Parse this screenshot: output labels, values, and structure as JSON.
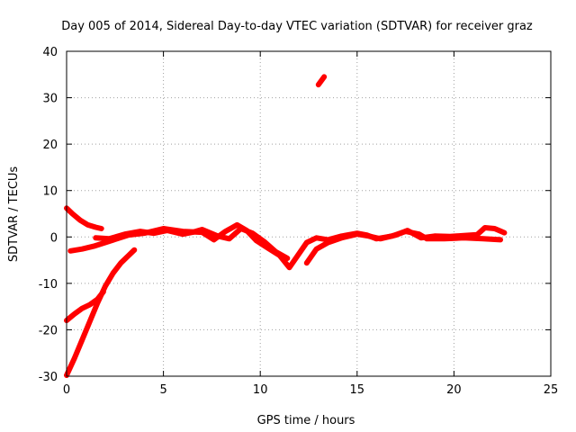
{
  "chart_data": {
    "type": "line",
    "title": "Day 005 of 2014, Sidereal Day-to-day VTEC variation (SDTVAR) for receiver graz",
    "xlabel": "GPS time / hours",
    "ylabel": "SDTVAR / TECUs",
    "xlim": [
      0,
      25
    ],
    "ylim": [
      -30,
      40
    ],
    "xticks": [
      0,
      5,
      10,
      15,
      20,
      25
    ],
    "yticks": [
      -30,
      -20,
      -10,
      0,
      10,
      20,
      30,
      40
    ],
    "xtick_labels": [
      "0",
      "5",
      "10",
      "15",
      "20",
      "25"
    ],
    "ytick_labels": [
      "-30",
      "-20",
      "-10",
      "0",
      "10",
      "20",
      "30",
      "40"
    ],
    "grid": true,
    "legend": "none",
    "color": "#ff0000",
    "series": [
      {
        "name": "pass-1",
        "x": [
          0.0,
          0.3,
          0.7,
          1.1,
          1.5,
          1.8
        ],
        "y": [
          6.2,
          5.0,
          3.6,
          2.6,
          2.1,
          1.8
        ]
      },
      {
        "name": "pass-2",
        "x": [
          0.2,
          0.8,
          1.4,
          2.0,
          2.6,
          3.2,
          4.0,
          5.0,
          6.0,
          7.0,
          7.6,
          8.2,
          8.8,
          9.3,
          9.8,
          10.4,
          11.0,
          11.5,
          11.9,
          12.4,
          12.9,
          13.5,
          14.2,
          15.0,
          15.5,
          16.0,
          16.8,
          17.5,
          18.2,
          18.6,
          19.5,
          20.5,
          21.5,
          22.4
        ],
        "y": [
          -3.0,
          -2.6,
          -2.0,
          -1.2,
          -0.4,
          0.4,
          0.8,
          1.8,
          1.2,
          1.0,
          -0.6,
          1.2,
          2.6,
          1.4,
          -0.8,
          -2.4,
          -4.0,
          -6.6,
          -4.2,
          -1.2,
          -0.2,
          -0.6,
          0.2,
          0.8,
          0.4,
          -0.4,
          0.2,
          1.2,
          0.6,
          -0.4,
          -0.4,
          -0.2,
          -0.4,
          -0.6
        ]
      },
      {
        "name": "pass-3",
        "x": [
          1.5,
          2.2,
          3.0,
          3.8,
          4.5,
          5.2,
          6.0,
          6.5,
          7.0,
          7.8,
          8.4,
          9.0,
          9.6,
          10.2,
          10.8,
          11.4
        ],
        "y": [
          -0.2,
          -0.4,
          0.6,
          1.2,
          0.8,
          1.4,
          0.6,
          1.0,
          1.6,
          0.2,
          -0.4,
          1.8,
          0.8,
          -1.0,
          -3.2,
          -4.6
        ]
      },
      {
        "name": "pass-4",
        "x": [
          12.4,
          12.9,
          13.5,
          14.2,
          15.0,
          15.6,
          16.2,
          17.0,
          17.6,
          18.3,
          19.0,
          19.8,
          20.5,
          21.2,
          21.6,
          22.1,
          22.6
        ],
        "y": [
          -5.6,
          -2.6,
          -1.2,
          -0.2,
          0.6,
          0.2,
          -0.4,
          0.4,
          1.4,
          -0.2,
          0.2,
          0.1,
          0.3,
          0.5,
          2.0,
          1.8,
          0.9
        ]
      },
      {
        "name": "pass-5",
        "x": [
          13.0,
          13.3
        ],
        "y": [
          32.8,
          34.5
        ]
      },
      {
        "name": "pass-6",
        "x": [
          0.0,
          0.4,
          0.8,
          1.2,
          1.6,
          1.9
        ],
        "y": [
          -18.0,
          -16.6,
          -15.4,
          -14.6,
          -13.4,
          -11.8
        ]
      },
      {
        "name": "pass-7",
        "x": [
          0.0,
          0.4,
          0.8,
          1.2,
          1.6,
          2.0,
          2.4,
          2.8,
          3.2,
          3.5
        ],
        "y": [
          -29.8,
          -26.2,
          -22.2,
          -18.2,
          -14.2,
          -10.6,
          -7.8,
          -5.6,
          -4.0,
          -2.8
        ]
      }
    ]
  }
}
